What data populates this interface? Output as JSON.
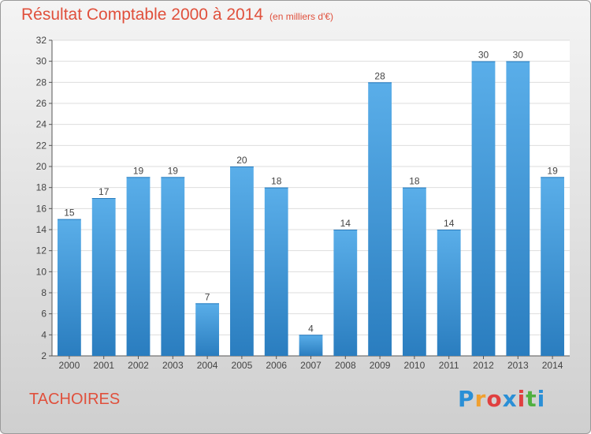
{
  "title": "Résultat Comptable 2000 à 2014",
  "subtitle": "(en milliers d'€)",
  "commune": "TACHOIRES",
  "logo": {
    "letters": [
      "P",
      "r",
      "o",
      "x",
      "i",
      "t",
      "i"
    ],
    "colors": [
      "#2a8fd6",
      "#f0a030",
      "#e04040",
      "#2a8fd6",
      "#e04040",
      "#50b040",
      "#2a8fd6"
    ]
  },
  "colors": {
    "accent": "#e0503c",
    "bar_top": "#5aaee9",
    "bar_bottom": "#2a7dbf"
  },
  "chart_data": {
    "type": "bar",
    "title": "Résultat Comptable 2000 à 2014",
    "categories": [
      "2000",
      "2001",
      "2002",
      "2003",
      "2004",
      "2005",
      "2006",
      "2007",
      "2008",
      "2009",
      "2010",
      "2011",
      "2012",
      "2013",
      "2014"
    ],
    "values": [
      15,
      17,
      19,
      19,
      7,
      20,
      18,
      4,
      14,
      28,
      18,
      14,
      30,
      30,
      19
    ],
    "ylim": [
      2,
      32
    ],
    "yticks": [
      2,
      4,
      6,
      8,
      10,
      12,
      14,
      16,
      18,
      20,
      22,
      24,
      26,
      28,
      30,
      32
    ],
    "grid": true,
    "xlabel": "",
    "ylabel": ""
  }
}
